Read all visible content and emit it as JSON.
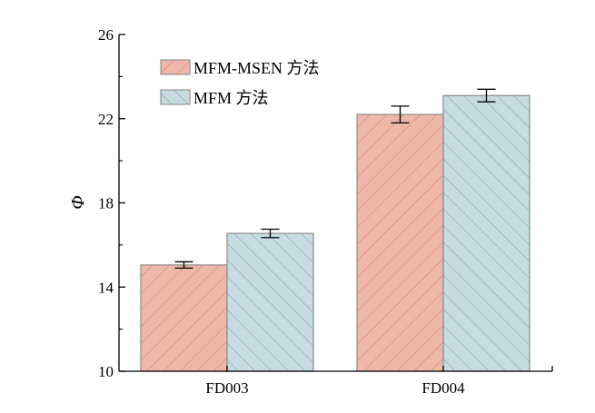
{
  "chart_data": {
    "type": "bar",
    "title": "",
    "xlabel": "",
    "ylabel": "Φ",
    "categories": [
      "FD003",
      "FD004"
    ],
    "ylim": [
      10,
      26
    ],
    "yticks": [
      10,
      14,
      18,
      22,
      26
    ],
    "grid": false,
    "legend_position": "top-left",
    "series": [
      {
        "name": "MFM-MSEN 方法",
        "values": [
          15.05,
          22.2
        ],
        "errors": [
          0.15,
          0.4
        ],
        "fill": "#eeb8a8",
        "hatch": "#d98a78",
        "hatch_direction": "forward"
      },
      {
        "name": "MFM 方法",
        "values": [
          16.55,
          23.1
        ],
        "errors": [
          0.2,
          0.3
        ],
        "fill": "#c7dce0",
        "hatch": "#8fa9ae",
        "hatch_direction": "backward"
      }
    ]
  }
}
